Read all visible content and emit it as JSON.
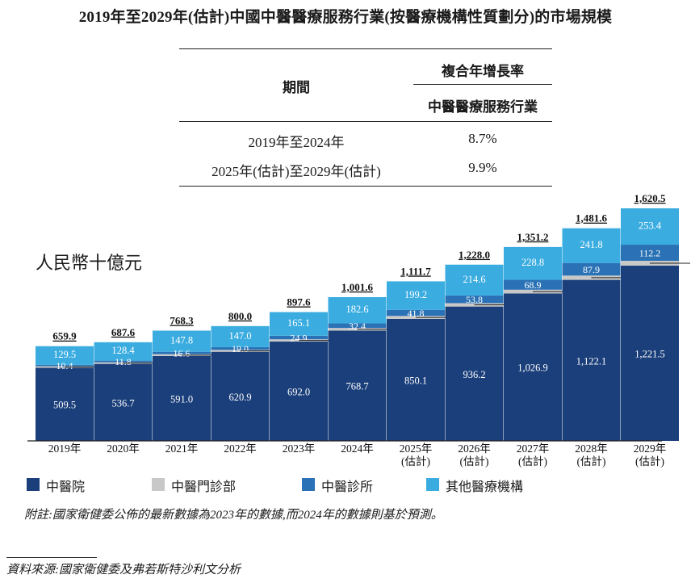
{
  "title": "2019年至2029年(估計)中國中醫醫療服務行業(按醫療機構性質劃分)的市場規模",
  "cagr_table": {
    "period_header": "期間",
    "cagr_header": "複合年增長率",
    "industry_header": "中醫醫療服務行業",
    "rows": [
      {
        "period": "2019年至2024年",
        "value": "8.7%"
      },
      {
        "period": "2025年(估計)至2029年(估計)",
        "value": "9.9%"
      }
    ]
  },
  "chart_data": {
    "type": "bar",
    "stacked": true,
    "unit_label": "人民幣十億元",
    "categories": [
      "2019年",
      "2020年",
      "2021年",
      "2022年",
      "2023年",
      "2024年",
      "2025年\n(估計)",
      "2026年\n(估計)",
      "2027年\n(估計)",
      "2028年\n(估計)",
      "2029年\n(估計)"
    ],
    "series": [
      {
        "name": "中醫院",
        "color": "#1b3f7a",
        "values": [
          509.5,
          536.7,
          591.0,
          620.9,
          692.0,
          768.7,
          850.1,
          936.2,
          1026.9,
          1122.1,
          1221.5
        ],
        "labels": [
          "509.5",
          "536.7",
          "591.0",
          "620.9",
          "692.0",
          "768.7",
          "850.1",
          "936.2",
          "1,026.9",
          "1,122.1",
          "1,221.5"
        ]
      },
      {
        "name": "中醫門診部",
        "color": "#c8c8c8",
        "values": [
          10.5,
          10.7,
          12.9,
          13.1,
          15.6,
          18.0,
          20.6,
          23.4,
          26.5,
          29.8,
          33.4
        ],
        "labels": [
          "10.5",
          "10.7",
          "12.9",
          "13.1",
          "15.6",
          "18.0",
          "20.6",
          "23.4",
          "26.5",
          "29.8",
          "33.4"
        ]
      },
      {
        "name": "中醫診所",
        "color": "#2a72b5",
        "values": [
          10.4,
          11.8,
          16.6,
          19.0,
          24.9,
          32.4,
          41.8,
          53.8,
          68.9,
          87.9,
          112.2
        ],
        "labels": [
          "10.4",
          "11.8",
          "16.6",
          "19.0",
          "24.9",
          "32.4",
          "41.8",
          "53.8",
          "68.9",
          "87.9",
          "112.2"
        ]
      },
      {
        "name": "其他醫療機構",
        "color": "#3aace0",
        "values": [
          129.5,
          128.4,
          147.8,
          147.0,
          165.1,
          182.6,
          199.2,
          214.6,
          228.8,
          241.8,
          253.4
        ],
        "labels": [
          "129.5",
          "128.4",
          "147.8",
          "147.0",
          "165.1",
          "182.6",
          "199.2",
          "214.6",
          "228.8",
          "241.8",
          "253.4"
        ]
      }
    ],
    "totals": [
      659.9,
      687.6,
      768.3,
      800.0,
      897.6,
      1001.6,
      1111.7,
      1228.0,
      1351.2,
      1481.6,
      1620.5
    ],
    "total_labels": [
      "659.9",
      "687.6",
      "768.3",
      "800.0",
      "897.6",
      "1,001.6",
      "1,111.7",
      "1,228.0",
      "1,351.2",
      "1,481.6",
      "1,620.5"
    ],
    "ylim": [
      0,
      1700
    ],
    "grid": false,
    "legend": "bottom"
  },
  "note": "附註:國家衛健委公佈的最新數據為2023年的數據,而2024年的數據則基於預測。",
  "source": "資料來源:國家衛健委及弗若斯特沙利文分析"
}
